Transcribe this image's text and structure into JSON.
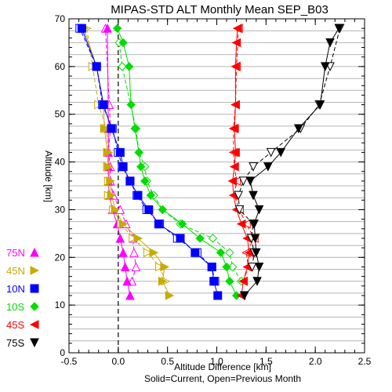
{
  "chart_data": {
    "type": "line",
    "title": "MIPAS-STD ALT Monthly Mean SEP_B03",
    "xlabel": "Altitude Difference [km]",
    "xlabel2": "Solid=Current, Open=Previous Month",
    "ylabel": "Altitude [km]",
    "xlim": [
      -0.5,
      2.5
    ],
    "ylim": [
      0,
      70
    ],
    "xticks": [
      -0.5,
      0.0,
      0.5,
      1.0,
      1.5,
      2.0,
      2.5
    ],
    "xtick_labels": [
      "-0.5",
      "0.0",
      "0.5",
      "1.0",
      "1.5",
      "2.0",
      "2.5"
    ],
    "yticks": [
      0,
      10,
      20,
      30,
      40,
      50,
      60,
      70
    ],
    "ytick_labels": [
      "0",
      "10",
      "20",
      "30",
      "40",
      "50",
      "60",
      "70"
    ],
    "horizontal_grid_step": 2.5,
    "reference_line_x": 0.0,
    "legend_position": "left",
    "series": [
      {
        "name": "75N",
        "color": "#ff00ff",
        "marker": "triangle-up",
        "current": {
          "x": [
            0.12,
            0.09,
            0.07,
            0.05,
            0.02,
            -0.01,
            -0.06,
            -0.09,
            -0.1,
            -0.1,
            -0.1,
            -0.1,
            -0.11
          ],
          "y": [
            12,
            15,
            18,
            21,
            24,
            27,
            30,
            33,
            36,
            39,
            42,
            47,
            68
          ]
        },
        "previous": {
          "x": [
            0.14,
            0.18,
            0.16,
            0.15,
            0.08,
            0.02,
            -0.05,
            -0.08,
            -0.08,
            -0.1,
            -0.08,
            -0.09,
            -0.13
          ],
          "y": [
            15,
            18,
            21,
            24,
            27,
            30,
            33,
            36,
            39,
            42,
            47,
            52,
            68
          ]
        }
      },
      {
        "name": "45N",
        "color": "#c8aa00",
        "marker": "triangle-right",
        "current": {
          "x": [
            0.52,
            0.45,
            0.47,
            0.36,
            0.2,
            0.05,
            -0.03,
            -0.07,
            -0.08,
            -0.1,
            -0.11,
            -0.14,
            -0.15,
            -0.22,
            -0.35
          ],
          "y": [
            12,
            15,
            18,
            21,
            24,
            27,
            30,
            33,
            36,
            39,
            42,
            47,
            52,
            60,
            68
          ]
        },
        "previous": {
          "x": [
            0.48,
            0.42,
            0.3,
            0.15,
            0.03,
            -0.05,
            -0.1,
            -0.1,
            -0.11,
            -0.1,
            -0.12,
            -0.2,
            -0.26,
            -0.32
          ],
          "y": [
            15,
            18,
            21,
            24,
            27,
            30,
            33,
            36,
            39,
            42,
            47,
            52,
            60,
            68
          ]
        }
      },
      {
        "name": "10N",
        "color": "#0000ff",
        "marker": "square",
        "current": {
          "x": [
            1.01,
            0.97,
            0.95,
            0.78,
            0.63,
            0.41,
            0.31,
            0.2,
            0.12,
            0.05,
            0.02,
            -0.07,
            -0.15,
            -0.22,
            -0.37
          ],
          "y": [
            12,
            15,
            18,
            21,
            24,
            27,
            30,
            33,
            36,
            39,
            42,
            47,
            52,
            60,
            68
          ]
        },
        "previous": {
          "x": [
            0.98,
            0.95,
            0.8,
            0.6,
            0.42,
            0.29,
            0.19,
            0.12,
            0.04,
            0.0,
            -0.06,
            -0.16,
            -0.22,
            -0.39
          ],
          "y": [
            15,
            18,
            21,
            24,
            27,
            30,
            33,
            36,
            39,
            42,
            47,
            52,
            60,
            68
          ]
        }
      },
      {
        "name": "10S",
        "color": "#00dd00",
        "marker": "diamond",
        "current": {
          "x": [
            1.2,
            1.13,
            1.1,
            1.04,
            0.83,
            0.65,
            0.45,
            0.33,
            0.27,
            0.23,
            0.21,
            0.17,
            0.13,
            0.11,
            0.05,
            -0.01
          ],
          "y": [
            12,
            15,
            18,
            21,
            24,
            27,
            30,
            33,
            36,
            39,
            42,
            47,
            52,
            60,
            65,
            68
          ]
        },
        "previous": {
          "x": [
            1.25,
            1.16,
            1.13,
            0.96,
            0.63,
            0.45,
            0.36,
            0.29,
            0.27,
            0.21,
            0.18,
            0.04,
            0.01
          ],
          "y": [
            15,
            18,
            21,
            24,
            27,
            30,
            33,
            36,
            39,
            42,
            47,
            60,
            65
          ]
        }
      },
      {
        "name": "45S",
        "color": "#ff0000",
        "marker": "triangle-left",
        "current": {
          "x": [
            1.25,
            1.27,
            1.31,
            1.33,
            1.31,
            1.25,
            1.2,
            1.17,
            1.16,
            1.18,
            1.19,
            1.18,
            1.19,
            1.19,
            1.2,
            1.21
          ],
          "y": [
            12,
            15,
            18,
            21,
            24,
            27,
            30,
            33,
            36,
            39,
            42,
            47,
            52,
            60,
            65,
            68
          ]
        },
        "previous": {
          "x": [
            1.27,
            1.32,
            1.3,
            1.38,
            1.3,
            1.23,
            1.18,
            1.2,
            1.18,
            1.17,
            1.17,
            1.19,
            1.2,
            1.22
          ],
          "y": [
            15,
            18,
            21,
            24,
            27,
            30,
            33,
            36,
            39,
            42,
            47,
            52,
            60,
            68
          ]
        }
      },
      {
        "name": "75S",
        "color": "#000000",
        "marker": "triangle-down",
        "current": {
          "x": [
            1.28,
            1.41,
            1.43,
            1.4,
            1.39,
            1.38,
            1.43,
            1.37,
            1.34,
            1.52,
            1.65,
            1.83,
            2.05,
            2.1,
            2.15,
            2.24
          ],
          "y": [
            12,
            15,
            18,
            21,
            24,
            27,
            30,
            33,
            36,
            39,
            42,
            47,
            52,
            60,
            65,
            68
          ]
        },
        "previous": {
          "x": [
            1.36,
            1.38,
            1.35,
            1.37,
            1.23,
            1.22,
            1.27,
            1.37,
            1.55,
            1.85,
            2.04,
            2.15,
            2.25
          ],
          "y": [
            18,
            21,
            24,
            27,
            30,
            33,
            36,
            39,
            42,
            47,
            52,
            60,
            68
          ]
        }
      }
    ]
  }
}
